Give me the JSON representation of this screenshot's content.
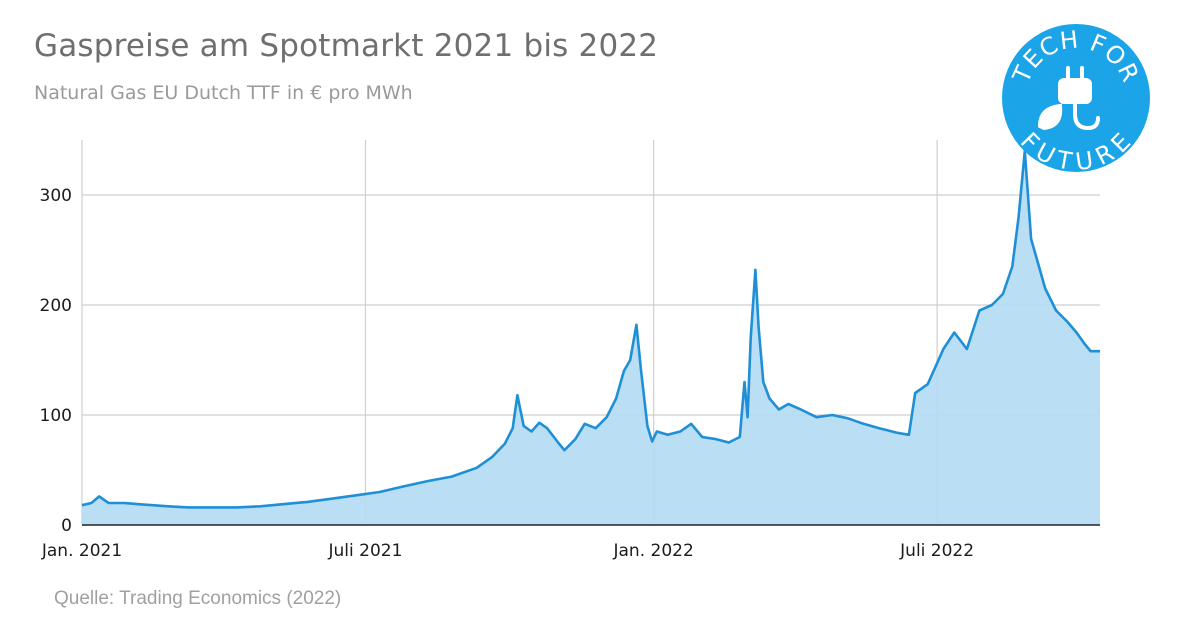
{
  "header": {
    "title": "Gaspreise am Spotmarkt 2021 bis 2022",
    "subtitle": "Natural Gas EU Dutch TTF in € pro MWh"
  },
  "footer": {
    "source": "Quelle: Trading Economics (2022)"
  },
  "logo": {
    "text_top": "TECH FOR",
    "text_bottom": "FUTURE",
    "color": "#1ba4e8",
    "icon": "plug-leaf-icon"
  },
  "colors": {
    "line": "#1f8fd6",
    "fill": "#b3dcf4",
    "grid": "#cfcfcf"
  },
  "chart_data": {
    "type": "area",
    "title": "",
    "xlabel": "",
    "ylabel": "",
    "ylim": [
      0,
      350
    ],
    "yticks": [
      0,
      100,
      200,
      300
    ],
    "xticks": [
      {
        "label": "Jan. 2021",
        "date": "2021-01-01"
      },
      {
        "label": "Juli 2021",
        "date": "2021-07-01"
      },
      {
        "label": "Jan. 2022",
        "date": "2022-01-01"
      },
      {
        "label": "Juli 2022",
        "date": "2022-07-01"
      }
    ],
    "xlim": [
      "2021-01-01",
      "2022-10-13"
    ],
    "grid": true,
    "legend": "none",
    "series": [
      {
        "values": [
          [
            "2021-01-01",
            18
          ],
          [
            "2021-01-07",
            20
          ],
          [
            "2021-01-12",
            26
          ],
          [
            "2021-01-18",
            20
          ],
          [
            "2021-01-28",
            20
          ],
          [
            "2021-02-05",
            19
          ],
          [
            "2021-02-15",
            18
          ],
          [
            "2021-02-25",
            17
          ],
          [
            "2021-03-10",
            16
          ],
          [
            "2021-03-25",
            16
          ],
          [
            "2021-04-10",
            16
          ],
          [
            "2021-04-25",
            17
          ],
          [
            "2021-05-10",
            19
          ],
          [
            "2021-05-25",
            21
          ],
          [
            "2021-06-10",
            24
          ],
          [
            "2021-06-25",
            27
          ],
          [
            "2021-07-10",
            30
          ],
          [
            "2021-07-25",
            35
          ],
          [
            "2021-08-10",
            40
          ],
          [
            "2021-08-25",
            44
          ],
          [
            "2021-09-10",
            52
          ],
          [
            "2021-09-20",
            62
          ],
          [
            "2021-09-28",
            74
          ],
          [
            "2021-10-03",
            88
          ],
          [
            "2021-10-06",
            118
          ],
          [
            "2021-10-10",
            90
          ],
          [
            "2021-10-15",
            85
          ],
          [
            "2021-10-20",
            93
          ],
          [
            "2021-10-25",
            88
          ],
          [
            "2021-11-01",
            75
          ],
          [
            "2021-11-05",
            68
          ],
          [
            "2021-11-12",
            78
          ],
          [
            "2021-11-18",
            92
          ],
          [
            "2021-11-25",
            88
          ],
          [
            "2021-12-02",
            98
          ],
          [
            "2021-12-08",
            115
          ],
          [
            "2021-12-13",
            140
          ],
          [
            "2021-12-17",
            150
          ],
          [
            "2021-12-21",
            182
          ],
          [
            "2021-12-24",
            140
          ],
          [
            "2021-12-28",
            90
          ],
          [
            "2021-12-31",
            76
          ],
          [
            "2022-01-03",
            85
          ],
          [
            "2022-01-10",
            82
          ],
          [
            "2022-01-18",
            85
          ],
          [
            "2022-01-25",
            92
          ],
          [
            "2022-02-01",
            80
          ],
          [
            "2022-02-10",
            78
          ],
          [
            "2022-02-18",
            75
          ],
          [
            "2022-02-25",
            80
          ],
          [
            "2022-02-28",
            130
          ],
          [
            "2022-03-02",
            98
          ],
          [
            "2022-03-04",
            170
          ],
          [
            "2022-03-07",
            232
          ],
          [
            "2022-03-09",
            180
          ],
          [
            "2022-03-12",
            130
          ],
          [
            "2022-03-16",
            115
          ],
          [
            "2022-03-22",
            105
          ],
          [
            "2022-03-28",
            110
          ],
          [
            "2022-04-05",
            105
          ],
          [
            "2022-04-15",
            98
          ],
          [
            "2022-04-25",
            100
          ],
          [
            "2022-05-05",
            97
          ],
          [
            "2022-05-15",
            92
          ],
          [
            "2022-05-25",
            88
          ],
          [
            "2022-06-05",
            84
          ],
          [
            "2022-06-13",
            82
          ],
          [
            "2022-06-17",
            120
          ],
          [
            "2022-06-25",
            128
          ],
          [
            "2022-07-05",
            160
          ],
          [
            "2022-07-12",
            175
          ],
          [
            "2022-07-20",
            160
          ],
          [
            "2022-07-28",
            195
          ],
          [
            "2022-08-05",
            200
          ],
          [
            "2022-08-12",
            210
          ],
          [
            "2022-08-18",
            235
          ],
          [
            "2022-08-22",
            280
          ],
          [
            "2022-08-26",
            340
          ],
          [
            "2022-08-30",
            260
          ],
          [
            "2022-09-03",
            240
          ],
          [
            "2022-09-08",
            215
          ],
          [
            "2022-09-15",
            195
          ],
          [
            "2022-09-22",
            185
          ],
          [
            "2022-09-28",
            175
          ],
          [
            "2022-10-03",
            165
          ],
          [
            "2022-10-07",
            158
          ],
          [
            "2022-10-13",
            158
          ]
        ]
      }
    ]
  }
}
